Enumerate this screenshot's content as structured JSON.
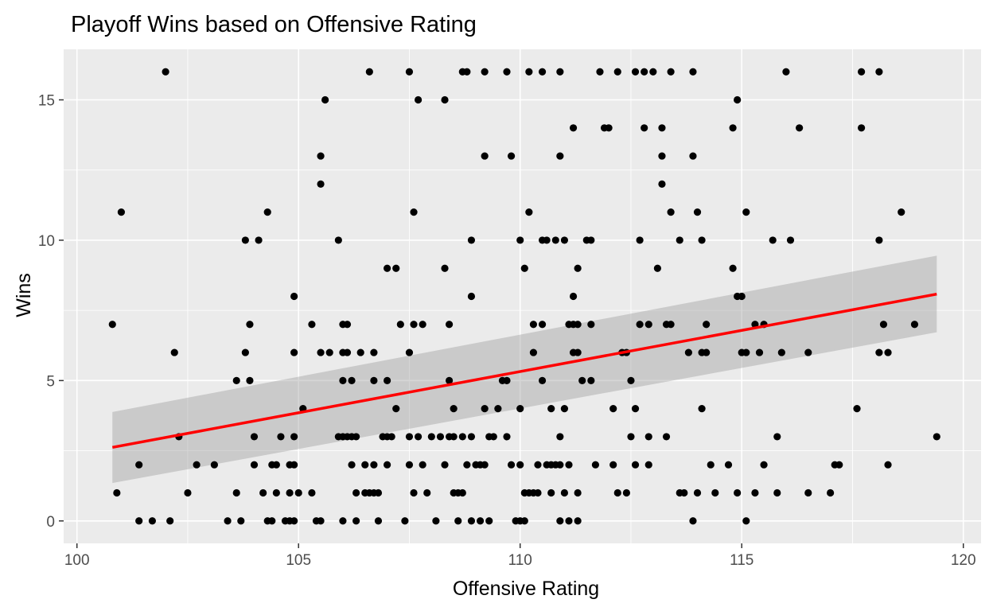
{
  "chart_data": {
    "type": "scatter",
    "title": "Playoff Wins based on Offensive Rating",
    "xlabel": "Offensive Rating",
    "ylabel": "Wins",
    "xlim": [
      99.7,
      120.4
    ],
    "ylim": [
      -0.8,
      16.8
    ],
    "x_ticks": [
      100,
      105,
      110,
      115,
      120
    ],
    "y_ticks": [
      0,
      5,
      10,
      15
    ],
    "grid": true,
    "legend": "none",
    "colors": {
      "panel": "#ebebeb",
      "grid": "#ffffff",
      "points": "#000000",
      "fit_line": "#ff0000",
      "confidence_band": "#999999"
    },
    "points": [
      [
        100.8,
        7
      ],
      [
        100.9,
        1
      ],
      [
        101,
        11
      ],
      [
        101.4,
        2
      ],
      [
        101.4,
        0
      ],
      [
        101.7,
        0
      ],
      [
        102,
        16
      ],
      [
        102.1,
        0
      ],
      [
        102.2,
        6
      ],
      [
        102.3,
        3
      ],
      [
        102.5,
        1
      ],
      [
        102.7,
        2
      ],
      [
        103.1,
        2
      ],
      [
        103.4,
        0
      ],
      [
        103.6,
        5
      ],
      [
        103.6,
        1
      ],
      [
        103.7,
        0
      ],
      [
        103.8,
        6
      ],
      [
        103.8,
        10
      ],
      [
        103.9,
        7
      ],
      [
        103.9,
        5
      ],
      [
        104,
        3
      ],
      [
        104,
        2
      ],
      [
        104.1,
        10
      ],
      [
        104.2,
        1
      ],
      [
        104.3,
        0
      ],
      [
        104.3,
        11
      ],
      [
        104.4,
        0
      ],
      [
        104.4,
        2
      ],
      [
        104.5,
        2
      ],
      [
        104.5,
        1
      ],
      [
        104.6,
        3
      ],
      [
        104.7,
        0
      ],
      [
        104.8,
        0
      ],
      [
        104.8,
        1
      ],
      [
        104.8,
        2
      ],
      [
        104.9,
        8
      ],
      [
        104.9,
        6
      ],
      [
        104.9,
        3
      ],
      [
        104.9,
        2
      ],
      [
        104.9,
        0
      ],
      [
        105,
        1
      ],
      [
        105.1,
        4
      ],
      [
        105.3,
        7
      ],
      [
        105.3,
        1
      ],
      [
        105.4,
        0
      ],
      [
        105.5,
        6
      ],
      [
        105.5,
        0
      ],
      [
        105.5,
        13
      ],
      [
        105.5,
        12
      ],
      [
        105.6,
        15
      ],
      [
        105.7,
        6
      ],
      [
        105.9,
        10
      ],
      [
        105.9,
        3
      ],
      [
        106,
        7
      ],
      [
        106,
        6
      ],
      [
        106,
        5
      ],
      [
        106,
        3
      ],
      [
        106,
        0
      ],
      [
        106.1,
        7
      ],
      [
        106.1,
        6
      ],
      [
        106.1,
        3
      ],
      [
        106.2,
        5
      ],
      [
        106.2,
        3
      ],
      [
        106.2,
        2
      ],
      [
        106.3,
        3
      ],
      [
        106.3,
        1
      ],
      [
        106.3,
        0
      ],
      [
        106.4,
        6
      ],
      [
        106.5,
        2
      ],
      [
        106.5,
        1
      ],
      [
        106.6,
        16
      ],
      [
        106.6,
        1
      ],
      [
        106.7,
        6
      ],
      [
        106.7,
        5
      ],
      [
        106.7,
        2
      ],
      [
        106.7,
        1
      ],
      [
        106.8,
        1
      ],
      [
        106.8,
        0
      ],
      [
        106.9,
        3
      ],
      [
        107,
        9
      ],
      [
        107,
        5
      ],
      [
        107,
        3
      ],
      [
        107,
        2
      ],
      [
        107.1,
        3
      ],
      [
        107.2,
        9
      ],
      [
        107.2,
        4
      ],
      [
        107.3,
        7
      ],
      [
        107.4,
        0
      ],
      [
        107.5,
        16
      ],
      [
        107.5,
        6
      ],
      [
        107.5,
        3
      ],
      [
        107.5,
        2
      ],
      [
        107.6,
        11
      ],
      [
        107.6,
        7
      ],
      [
        107.6,
        1
      ],
      [
        107.7,
        15
      ],
      [
        107.7,
        3
      ],
      [
        107.8,
        7
      ],
      [
        107.8,
        2
      ],
      [
        107.9,
        1
      ],
      [
        108,
        3
      ],
      [
        108.1,
        0
      ],
      [
        108.2,
        3
      ],
      [
        108.3,
        15
      ],
      [
        108.3,
        9
      ],
      [
        108.3,
        2
      ],
      [
        108.4,
        7
      ],
      [
        108.4,
        5
      ],
      [
        108.4,
        3
      ],
      [
        108.5,
        4
      ],
      [
        108.5,
        3
      ],
      [
        108.5,
        1
      ],
      [
        108.6,
        1
      ],
      [
        108.6,
        0
      ],
      [
        108.7,
        16
      ],
      [
        108.7,
        3
      ],
      [
        108.7,
        1
      ],
      [
        108.8,
        16
      ],
      [
        108.8,
        2
      ],
      [
        108.9,
        10
      ],
      [
        108.9,
        8
      ],
      [
        108.9,
        3
      ],
      [
        108.9,
        0
      ],
      [
        109,
        2
      ],
      [
        109.1,
        2
      ],
      [
        109.1,
        0
      ],
      [
        109.2,
        16
      ],
      [
        109.2,
        13
      ],
      [
        109.2,
        4
      ],
      [
        109.2,
        2
      ],
      [
        109.3,
        3
      ],
      [
        109.3,
        0
      ],
      [
        109.4,
        3
      ],
      [
        109.5,
        4
      ],
      [
        109.6,
        5
      ],
      [
        109.7,
        5
      ],
      [
        109.7,
        3
      ],
      [
        109.7,
        16
      ],
      [
        109.8,
        13
      ],
      [
        109.8,
        2
      ],
      [
        109.9,
        0
      ],
      [
        110,
        10
      ],
      [
        110,
        4
      ],
      [
        110,
        2
      ],
      [
        110,
        0
      ],
      [
        110.1,
        9
      ],
      [
        110.1,
        1
      ],
      [
        110.1,
        0
      ],
      [
        110.2,
        16
      ],
      [
        110.2,
        11
      ],
      [
        110.2,
        1
      ],
      [
        110.3,
        7
      ],
      [
        110.3,
        6
      ],
      [
        110.3,
        1
      ],
      [
        110.4,
        1
      ],
      [
        110.4,
        2
      ],
      [
        110.5,
        10
      ],
      [
        110.5,
        7
      ],
      [
        110.5,
        5
      ],
      [
        110.5,
        16
      ],
      [
        110.6,
        10
      ],
      [
        110.6,
        2
      ],
      [
        110.7,
        4
      ],
      [
        110.7,
        2
      ],
      [
        110.7,
        1
      ],
      [
        110.8,
        10
      ],
      [
        110.8,
        2
      ],
      [
        110.9,
        16
      ],
      [
        110.9,
        13
      ],
      [
        110.9,
        3
      ],
      [
        110.9,
        2
      ],
      [
        110.9,
        0
      ],
      [
        111,
        10
      ],
      [
        111,
        4
      ],
      [
        111,
        1
      ],
      [
        111.1,
        0
      ],
      [
        111.1,
        2
      ],
      [
        111.1,
        7
      ],
      [
        111.2,
        14
      ],
      [
        111.2,
        8
      ],
      [
        111.2,
        6
      ],
      [
        111.2,
        7
      ],
      [
        111.3,
        9
      ],
      [
        111.3,
        7
      ],
      [
        111.3,
        6
      ],
      [
        111.3,
        1
      ],
      [
        111.3,
        0
      ],
      [
        111.4,
        5
      ],
      [
        111.5,
        10
      ],
      [
        111.6,
        7
      ],
      [
        111.6,
        5
      ],
      [
        111.6,
        10
      ],
      [
        111.7,
        2
      ],
      [
        111.8,
        16
      ],
      [
        111.9,
        14
      ],
      [
        112,
        14
      ],
      [
        112.1,
        4
      ],
      [
        112.1,
        2
      ],
      [
        112.2,
        16
      ],
      [
        112.2,
        1
      ],
      [
        112.3,
        6
      ],
      [
        112.4,
        6
      ],
      [
        112.4,
        1
      ],
      [
        112.5,
        5
      ],
      [
        112.5,
        3
      ],
      [
        112.6,
        16
      ],
      [
        112.6,
        4
      ],
      [
        112.6,
        2
      ],
      [
        112.7,
        10
      ],
      [
        112.7,
        7
      ],
      [
        112.8,
        16
      ],
      [
        112.8,
        14
      ],
      [
        112.9,
        7
      ],
      [
        112.9,
        3
      ],
      [
        112.9,
        2
      ],
      [
        113,
        16
      ],
      [
        113.1,
        9
      ],
      [
        113.2,
        13
      ],
      [
        113.2,
        12
      ],
      [
        113.2,
        14
      ],
      [
        113.3,
        7
      ],
      [
        113.3,
        3
      ],
      [
        113.4,
        11
      ],
      [
        113.4,
        16
      ],
      [
        113.4,
        7
      ],
      [
        113.6,
        10
      ],
      [
        113.6,
        1
      ],
      [
        113.7,
        1
      ],
      [
        113.8,
        6
      ],
      [
        113.9,
        16
      ],
      [
        113.9,
        13
      ],
      [
        113.9,
        0
      ],
      [
        114,
        11
      ],
      [
        114,
        1
      ],
      [
        114.1,
        4
      ],
      [
        114.1,
        6
      ],
      [
        114.1,
        10
      ],
      [
        114.2,
        6
      ],
      [
        114.2,
        7
      ],
      [
        114.3,
        2
      ],
      [
        114.4,
        1
      ],
      [
        114.7,
        2
      ],
      [
        114.8,
        14
      ],
      [
        114.8,
        9
      ],
      [
        114.9,
        8
      ],
      [
        114.9,
        15
      ],
      [
        114.9,
        1
      ],
      [
        115,
        6
      ],
      [
        115,
        8
      ],
      [
        115.1,
        6
      ],
      [
        115.1,
        11
      ],
      [
        115.1,
        0
      ],
      [
        115.3,
        7
      ],
      [
        115.3,
        1
      ],
      [
        115.4,
        6
      ],
      [
        115.5,
        7
      ],
      [
        115.5,
        2
      ],
      [
        115.7,
        10
      ],
      [
        115.8,
        3
      ],
      [
        115.8,
        1
      ],
      [
        115.9,
        6
      ],
      [
        116,
        16
      ],
      [
        116.1,
        10
      ],
      [
        116.3,
        14
      ],
      [
        116.5,
        6
      ],
      [
        116.5,
        1
      ],
      [
        117,
        1
      ],
      [
        117.1,
        2
      ],
      [
        117.2,
        2
      ],
      [
        117.6,
        4
      ],
      [
        117.7,
        16
      ],
      [
        117.7,
        14
      ],
      [
        118.1,
        10
      ],
      [
        118.1,
        6
      ],
      [
        118.1,
        16
      ],
      [
        118.2,
        7
      ],
      [
        118.3,
        6
      ],
      [
        118.3,
        2
      ],
      [
        118.6,
        11
      ],
      [
        118.9,
        7
      ],
      [
        119.4,
        3
      ]
    ],
    "fit": {
      "method": "linear",
      "x": [
        100.8,
        119.4
      ],
      "y": [
        2.62,
        8.08
      ]
    },
    "confidence_band": {
      "x": [
        100.8,
        119.4
      ],
      "lower": [
        1.35,
        6.72
      ],
      "upper": [
        3.88,
        9.45
      ]
    }
  }
}
